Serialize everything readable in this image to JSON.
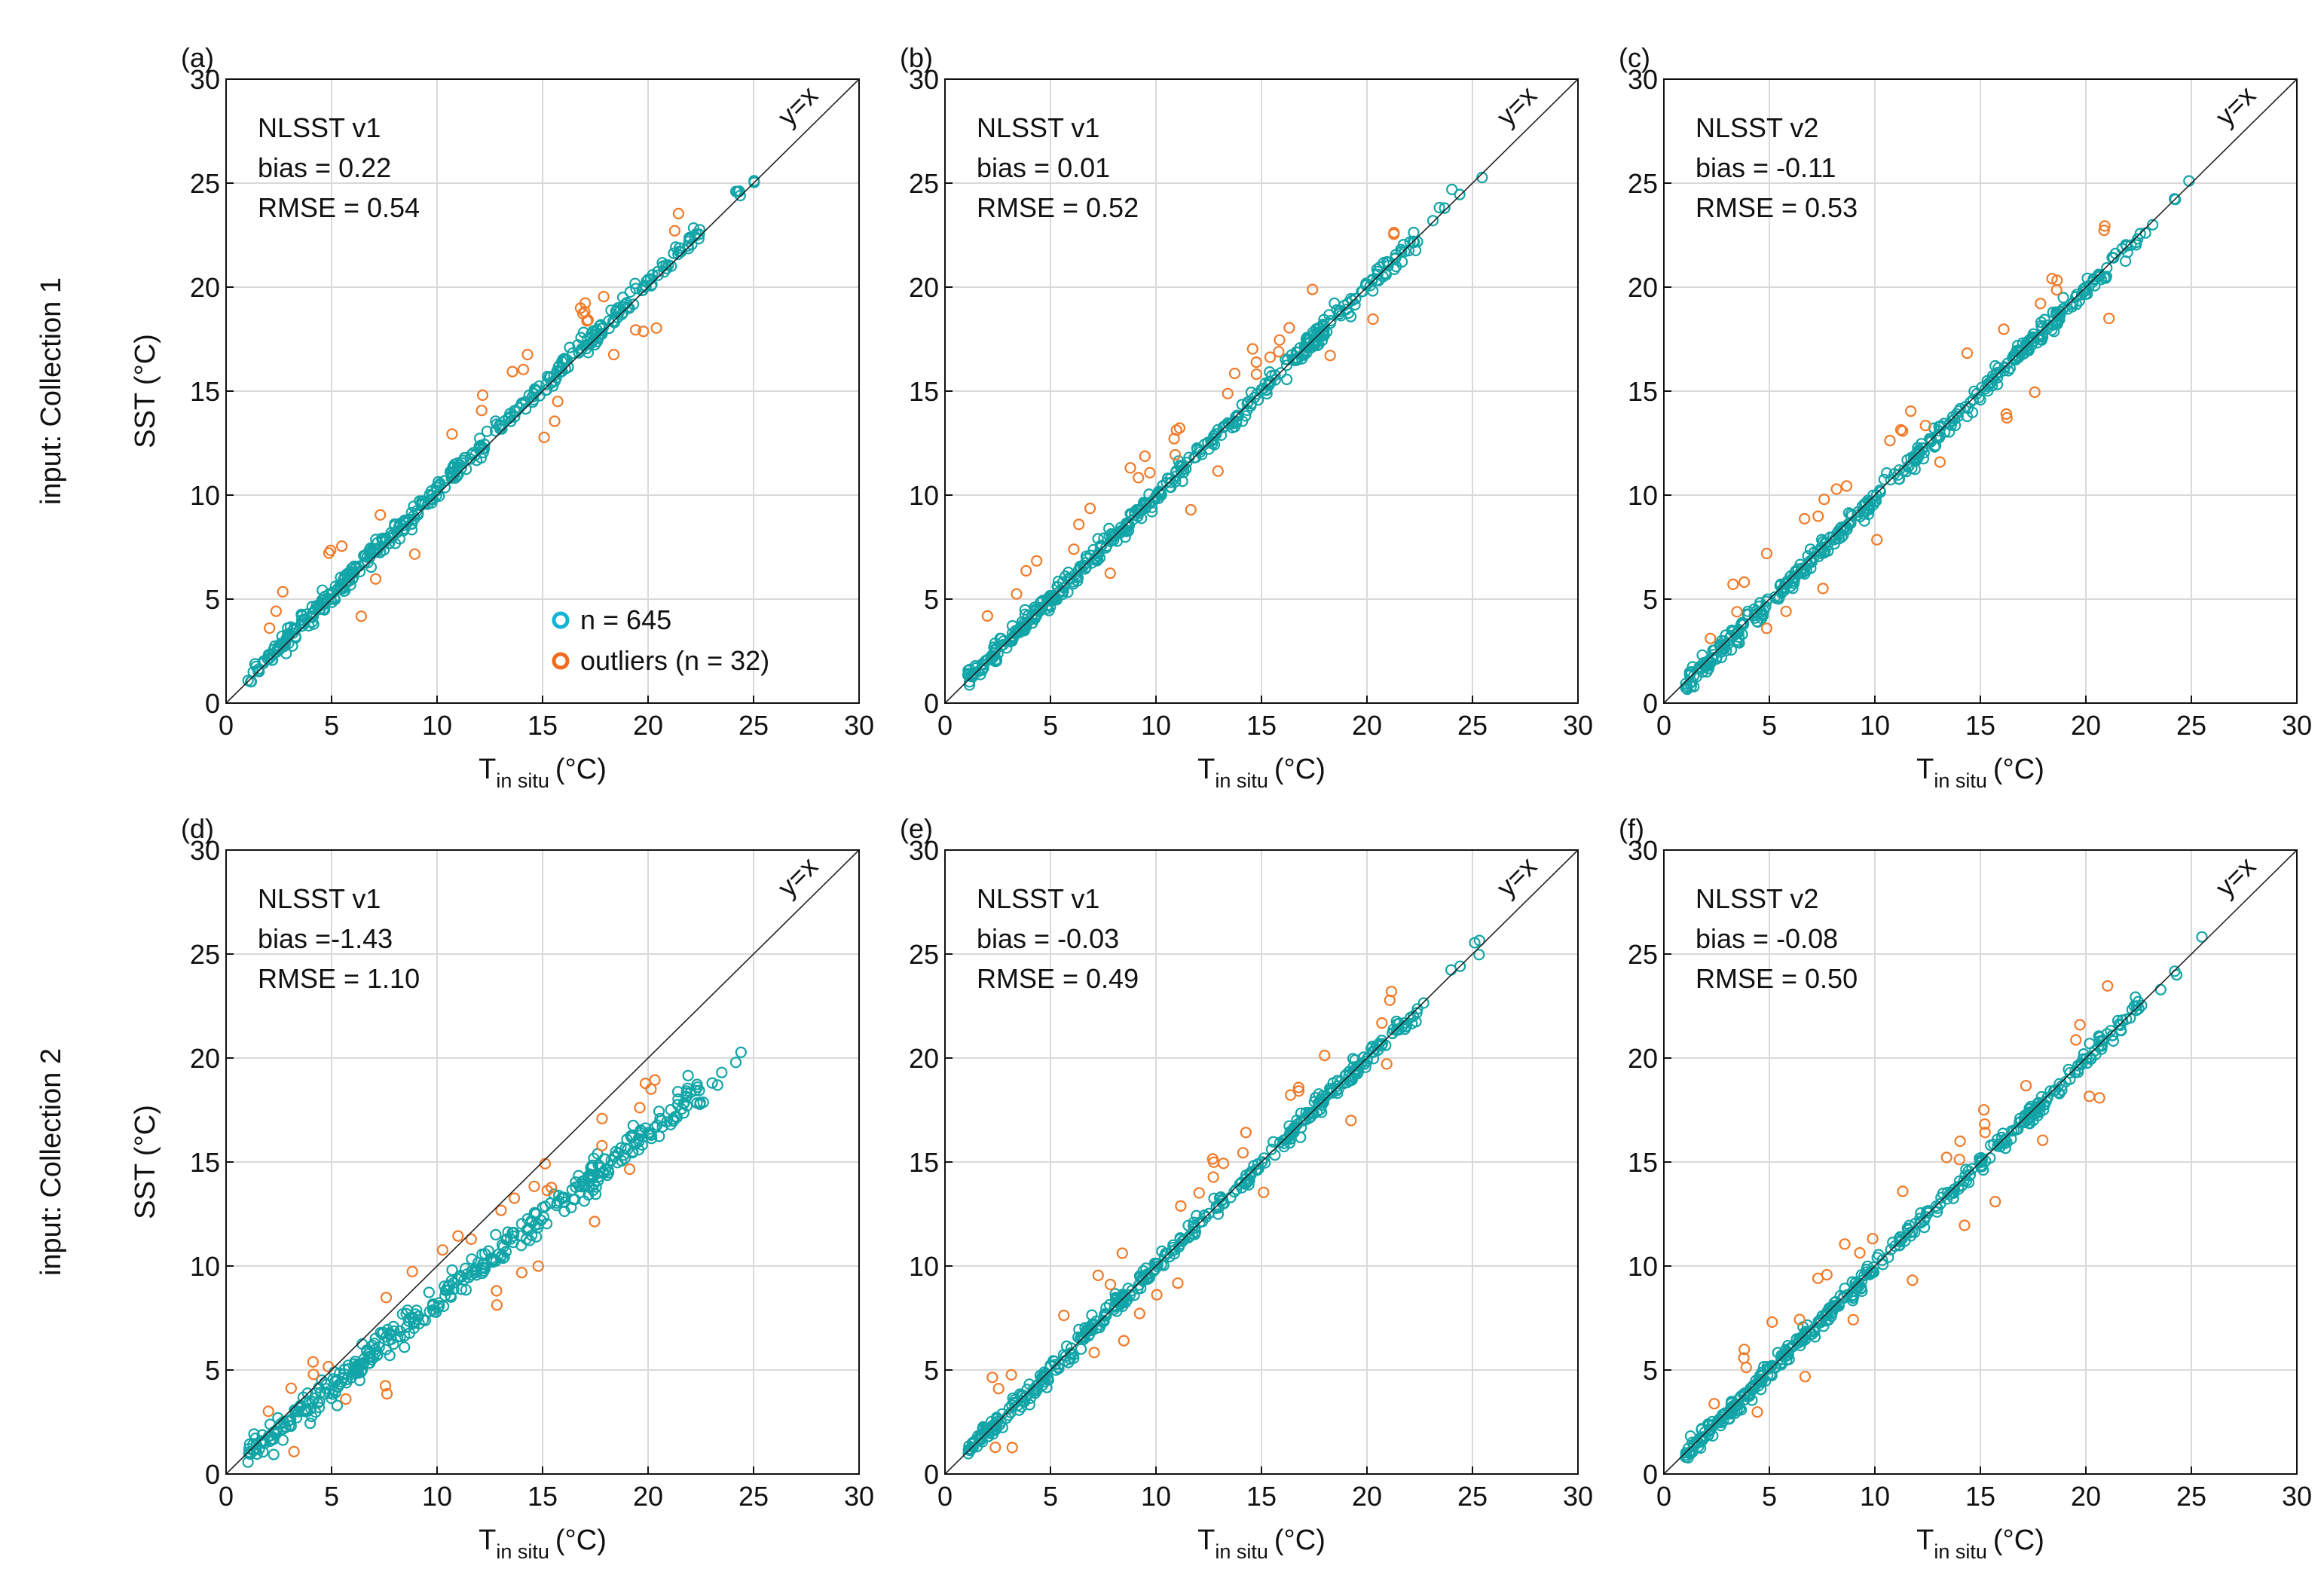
{
  "figure": {
    "row_labels": [
      "input: Collection 1",
      "input: Collection 2"
    ],
    "ylabel": "SST (°C)",
    "xlabel_main": "T",
    "xlabel_sub": "in situ",
    "xlabel_unit": "(°C)",
    "identity_label": "y=x",
    "legend": {
      "in_panel": "a",
      "entries": [
        {
          "label": "n = 645",
          "color": "#12b3d6"
        },
        {
          "label": "outliers (n = 32)",
          "color": "#f26b1d"
        }
      ]
    },
    "colors": {
      "main": "#12a5a8",
      "outlier": "#f07a28",
      "grid": "#d9d9d9"
    }
  },
  "chart_data": [
    {
      "id": "a",
      "panel_label": "(a)",
      "type": "scatter",
      "row": 1,
      "col": 1,
      "model": "NLSST v1",
      "bias_text": "bias = 0.22",
      "rmse_text": "RMSE = 0.54",
      "bias": 0.22,
      "slope": 1.0,
      "spread": 0.45,
      "n": 645,
      "n_outliers": 32,
      "seed": 11,
      "xlim": [
        0,
        30
      ],
      "ylim": [
        0,
        30
      ],
      "ticks": [
        0,
        5,
        10,
        15,
        20,
        25,
        30
      ],
      "grid": true
    },
    {
      "id": "b",
      "panel_label": "(b)",
      "type": "scatter",
      "row": 1,
      "col": 2,
      "model": "NLSST v1",
      "bias_text": "bias = 0.01",
      "rmse_text": "RMSE = 0.52",
      "bias": 0.01,
      "slope": 1.0,
      "spread": 0.43,
      "n": 645,
      "n_outliers": 32,
      "seed": 23,
      "xlim": [
        0,
        30
      ],
      "ylim": [
        0,
        30
      ],
      "ticks": [
        0,
        5,
        10,
        15,
        20,
        25,
        30
      ],
      "grid": true
    },
    {
      "id": "c",
      "panel_label": "(c)",
      "type": "scatter",
      "row": 1,
      "col": 3,
      "model": "NLSST v2",
      "bias_text": "bias = -0.11",
      "rmse_text": "RMSE = 0.53",
      "bias": -0.11,
      "slope": 1.0,
      "spread": 0.44,
      "n": 645,
      "n_outliers": 32,
      "seed": 37,
      "xlim": [
        0,
        30
      ],
      "ylim": [
        0,
        30
      ],
      "ticks": [
        0,
        5,
        10,
        15,
        20,
        25,
        30
      ],
      "grid": true
    },
    {
      "id": "d",
      "panel_label": "(d)",
      "type": "scatter",
      "row": 2,
      "col": 1,
      "model": "NLSST v1",
      "bias_text": "bias =-1.43",
      "rmse_text": "RMSE = 1.10",
      "bias": 0.1,
      "slope": 0.82,
      "spread": 0.7,
      "n": 645,
      "n_outliers": 32,
      "seed": 41,
      "xlim": [
        0,
        30
      ],
      "ylim": [
        0,
        30
      ],
      "ticks": [
        0,
        5,
        10,
        15,
        20,
        25,
        30
      ],
      "grid": true
    },
    {
      "id": "e",
      "panel_label": "(e)",
      "type": "scatter",
      "row": 2,
      "col": 2,
      "model": "NLSST v1",
      "bias_text": "bias = -0.03",
      "rmse_text": "RMSE = 0.49",
      "bias": -0.03,
      "slope": 1.0,
      "spread": 0.41,
      "n": 645,
      "n_outliers": 32,
      "seed": 53,
      "xlim": [
        0,
        30
      ],
      "ylim": [
        0,
        30
      ],
      "ticks": [
        0,
        5,
        10,
        15,
        20,
        25,
        30
      ],
      "grid": true
    },
    {
      "id": "f",
      "panel_label": "(f)",
      "type": "scatter",
      "row": 2,
      "col": 3,
      "model": "NLSST v2",
      "bias_text": "bias = -0.08",
      "rmse_text": "RMSE = 0.50",
      "bias": -0.08,
      "slope": 1.0,
      "spread": 0.42,
      "n": 645,
      "n_outliers": 32,
      "seed": 67,
      "xlim": [
        0,
        30
      ],
      "ylim": [
        0,
        30
      ],
      "ticks": [
        0,
        5,
        10,
        15,
        20,
        25,
        30
      ],
      "grid": true
    }
  ]
}
